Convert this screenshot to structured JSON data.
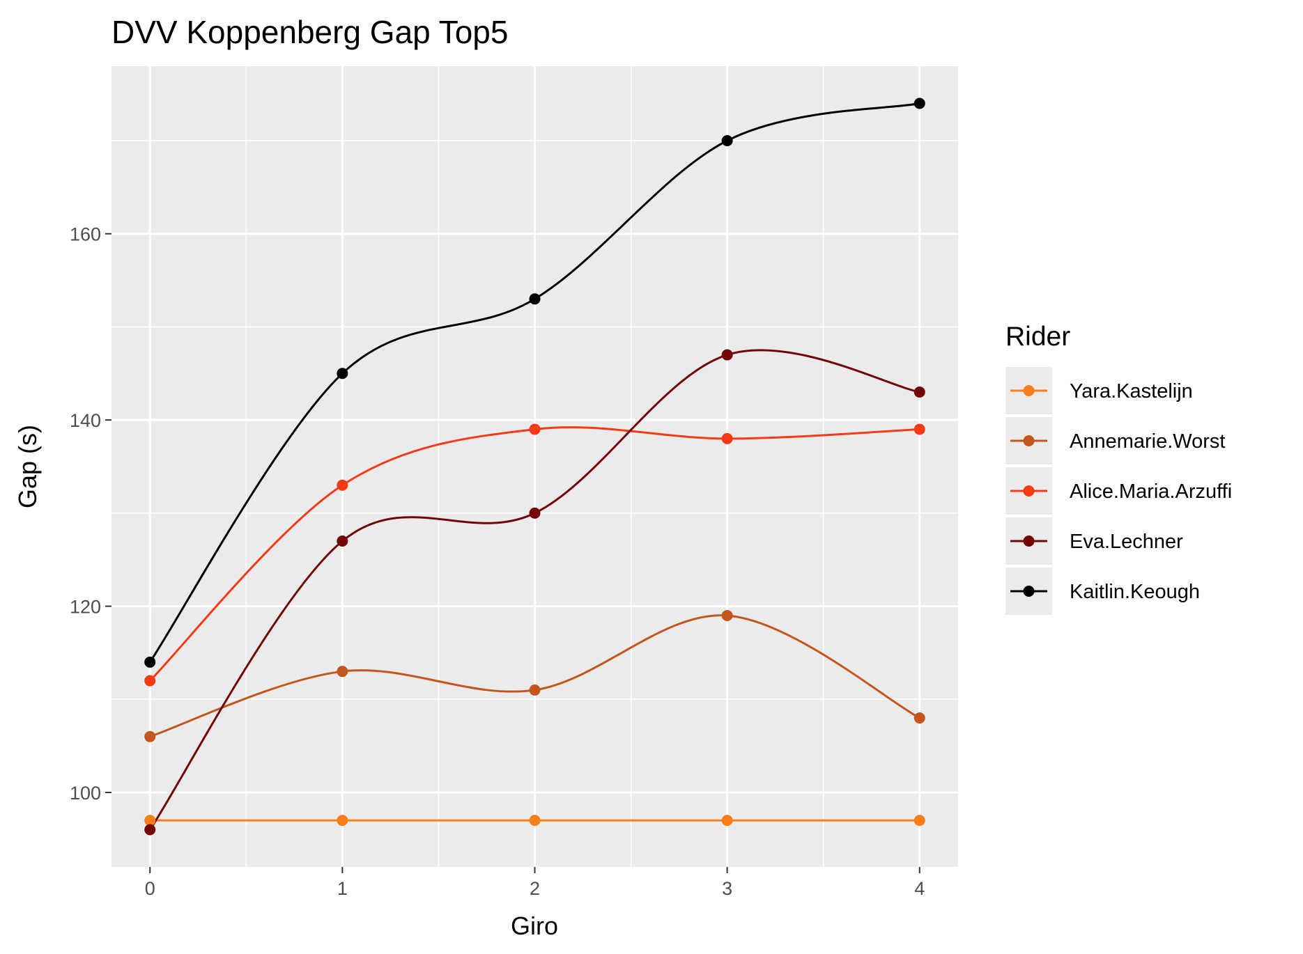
{
  "chart_data": {
    "type": "line",
    "title": "DVV Koppenberg Gap Top5",
    "xlabel": "Giro",
    "ylabel": "Gap (s)",
    "x": [
      0,
      1,
      2,
      3,
      4
    ],
    "x_ticks": [
      0,
      1,
      2,
      3,
      4
    ],
    "xlim": [
      -0.2,
      4.2
    ],
    "y_ticks": [
      100,
      120,
      140,
      160
    ],
    "ylim": [
      92,
      178
    ],
    "grid": true,
    "legend": {
      "title": "Rider",
      "position": "right"
    },
    "series": [
      {
        "name": "Yara.Kastelijn",
        "color": "#F77F1B",
        "values": [
          97,
          97,
          97,
          97,
          97
        ]
      },
      {
        "name": "Annemarie.Worst",
        "color": "#C4561D",
        "values": [
          106,
          113,
          111,
          119,
          108
        ]
      },
      {
        "name": "Alice.Maria.Arzuffi",
        "color": "#F43A17",
        "values": [
          112,
          133,
          139,
          138,
          139
        ]
      },
      {
        "name": "Eva.Lechner",
        "color": "#720607",
        "values": [
          96,
          127,
          130,
          147,
          143
        ]
      },
      {
        "name": "Kaitlin.Keough",
        "color": "#000000",
        "values": [
          114,
          145,
          153,
          170,
          174
        ]
      }
    ]
  }
}
